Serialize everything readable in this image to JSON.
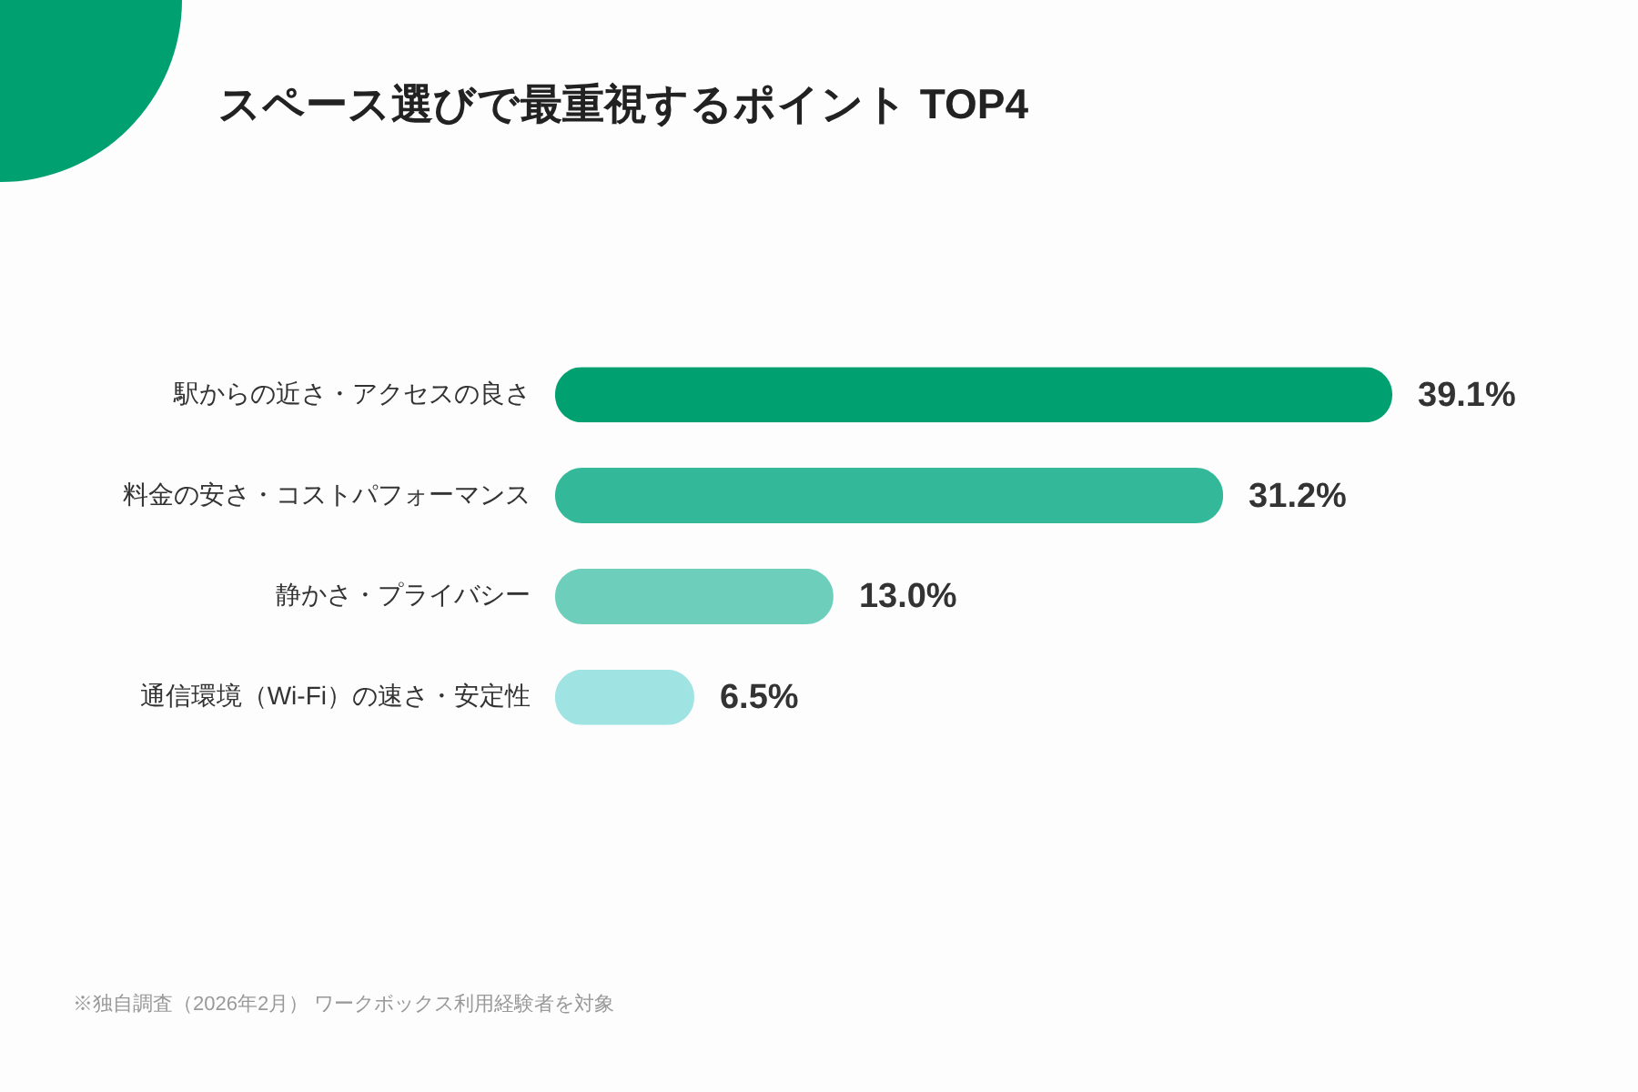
{
  "chart_data": {
    "type": "bar",
    "orientation": "horizontal",
    "title": "スペース選びで最重視するポイント TOP4",
    "categories": [
      "駅からの近さ・アクセスの良さ",
      "料金の安さ・コストパフォーマンス",
      "静かさ・プライバシー",
      "通信環境（Wi-Fi）の速さ・安定性"
    ],
    "values": [
      39.1,
      31.2,
      13.0,
      6.5
    ],
    "colors": [
      "#00a070",
      "#33b99a",
      "#6dcfbb",
      "#9fe3e3"
    ],
    "value_labels": [
      "39.1%",
      "31.2%",
      "13.0%",
      "6.5%"
    ],
    "annotations": [
      "※独自調査（2026年2月） ワークボックス利用経験者を対象"
    ]
  }
}
